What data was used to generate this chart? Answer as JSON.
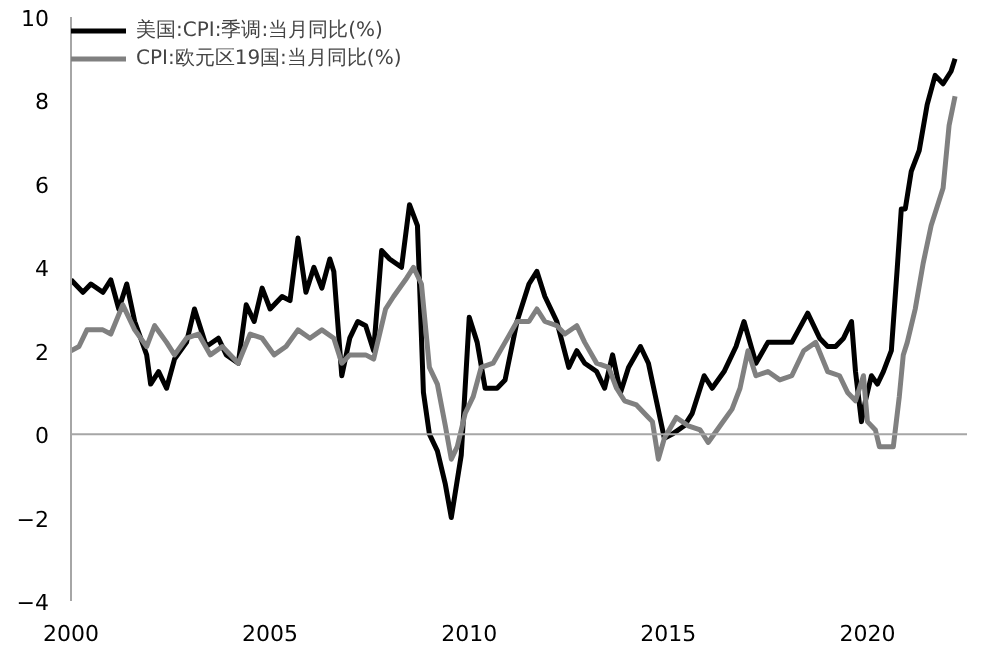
{
  "chart_data": {
    "type": "line",
    "xlim": [
      2000,
      2022.5
    ],
    "ylim": [
      -4,
      10
    ],
    "xticks": [
      2000,
      2005,
      2010,
      2015,
      2020
    ],
    "yticks": [
      -4,
      -2,
      0,
      2,
      4,
      6,
      8,
      10
    ],
    "grid": false,
    "legend": "top left",
    "line_style": "solid",
    "ref_lines": [
      {
        "axis": "y",
        "value": 0,
        "color": "#a6a6a6"
      }
    ],
    "series": [
      {
        "name": "美国:CPI:季调:当月同比(%)",
        "color": "#000000",
        "x": [
          2000.0,
          2000.3,
          2000.5,
          2000.8,
          2001.0,
          2001.2,
          2001.4,
          2001.6,
          2001.9,
          2002.0,
          2002.2,
          2002.4,
          2002.6,
          2002.9,
          2003.1,
          2003.4,
          2003.7,
          2003.9,
          2004.2,
          2004.4,
          2004.6,
          2004.8,
          2005.0,
          2005.3,
          2005.5,
          2005.7,
          2005.9,
          2006.1,
          2006.3,
          2006.5,
          2006.6,
          2006.8,
          2007.0,
          2007.2,
          2007.4,
          2007.6,
          2007.8,
          2008.0,
          2008.3,
          2008.5,
          2008.7,
          2008.85,
          2009.0,
          2009.2,
          2009.4,
          2009.55,
          2009.8,
          2010.0,
          2010.2,
          2010.4,
          2010.7,
          2010.9,
          2011.2,
          2011.5,
          2011.7,
          2011.9,
          2012.2,
          2012.5,
          2012.7,
          2012.9,
          2013.2,
          2013.4,
          2013.6,
          2013.8,
          2014.0,
          2014.3,
          2014.5,
          2014.7,
          2014.9,
          2015.1,
          2015.4,
          2015.6,
          2015.9,
          2016.1,
          2016.4,
          2016.7,
          2016.9,
          2017.2,
          2017.5,
          2017.8,
          2018.1,
          2018.5,
          2018.8,
          2019.0,
          2019.2,
          2019.4,
          2019.6,
          2019.7,
          2019.85,
          2019.95,
          2020.1,
          2020.25,
          2020.4,
          2020.6,
          2020.75,
          2020.85,
          2020.95,
          2021.1,
          2021.3,
          2021.5,
          2021.7,
          2021.9,
          2022.1,
          2022.2
        ],
        "values": [
          3.7,
          3.4,
          3.6,
          3.4,
          3.7,
          3.0,
          3.6,
          2.7,
          1.9,
          1.2,
          1.5,
          1.1,
          1.8,
          2.2,
          3.0,
          2.1,
          2.3,
          1.9,
          1.7,
          3.1,
          2.7,
          3.5,
          3.0,
          3.3,
          3.2,
          4.7,
          3.4,
          4.0,
          3.5,
          4.2,
          3.9,
          1.4,
          2.3,
          2.7,
          2.6,
          2.0,
          4.4,
          4.2,
          4.0,
          5.5,
          5.0,
          1.0,
          0.0,
          -0.4,
          -1.2,
          -2.0,
          -0.5,
          2.8,
          2.2,
          1.1,
          1.1,
          1.3,
          2.7,
          3.6,
          3.9,
          3.3,
          2.7,
          1.6,
          2.0,
          1.7,
          1.5,
          1.1,
          1.9,
          1.0,
          1.6,
          2.1,
          1.7,
          0.8,
          -0.1,
          0.0,
          0.2,
          0.5,
          1.4,
          1.1,
          1.5,
          2.1,
          2.7,
          1.7,
          2.2,
          2.2,
          2.2,
          2.9,
          2.3,
          2.1,
          2.1,
          2.3,
          2.7,
          1.5,
          0.3,
          0.8,
          1.4,
          1.2,
          1.5,
          2.0,
          4.0,
          5.4,
          5.4,
          6.3,
          6.8,
          7.9,
          8.6,
          8.4,
          8.7,
          9.0
        ]
      },
      {
        "name": "CPI:欧元区19国:当月同比(%)",
        "color": "#808080",
        "x": [
          2000.0,
          2000.2,
          2000.4,
          2000.8,
          2001.0,
          2001.3,
          2001.6,
          2001.9,
          2002.1,
          2002.4,
          2002.6,
          2002.9,
          2003.2,
          2003.5,
          2003.8,
          2004.2,
          2004.5,
          2004.8,
          2005.1,
          2005.4,
          2005.7,
          2006.0,
          2006.3,
          2006.6,
          2006.8,
          2007.0,
          2007.4,
          2007.6,
          2007.9,
          2008.1,
          2008.4,
          2008.6,
          2008.8,
          2009.0,
          2009.2,
          2009.4,
          2009.55,
          2009.7,
          2009.9,
          2010.1,
          2010.3,
          2010.6,
          2010.9,
          2011.2,
          2011.5,
          2011.7,
          2011.9,
          2012.2,
          2012.4,
          2012.7,
          2012.9,
          2013.2,
          2013.5,
          2013.7,
          2013.9,
          2014.2,
          2014.5,
          2014.6,
          2014.75,
          2014.9,
          2015.2,
          2015.5,
          2015.8,
          2016.0,
          2016.3,
          2016.6,
          2016.8,
          2017.0,
          2017.2,
          2017.5,
          2017.8,
          2018.1,
          2018.4,
          2018.7,
          2019.0,
          2019.3,
          2019.5,
          2019.7,
          2019.9,
          2020.0,
          2020.2,
          2020.3,
          2020.5,
          2020.65,
          2020.8,
          2020.9,
          2021.0,
          2021.2,
          2021.4,
          2021.6,
          2021.9,
          2022.05,
          2022.2
        ],
        "values": [
          2.0,
          2.1,
          2.5,
          2.5,
          2.4,
          3.1,
          2.5,
          2.1,
          2.6,
          2.2,
          1.9,
          2.3,
          2.4,
          1.9,
          2.1,
          1.7,
          2.4,
          2.3,
          1.9,
          2.1,
          2.5,
          2.3,
          2.5,
          2.3,
          1.7,
          1.9,
          1.9,
          1.8,
          3.0,
          3.3,
          3.7,
          4.0,
          3.6,
          1.6,
          1.2,
          0.2,
          -0.6,
          -0.3,
          0.5,
          0.9,
          1.6,
          1.7,
          2.2,
          2.7,
          2.7,
          3.0,
          2.7,
          2.6,
          2.4,
          2.6,
          2.2,
          1.7,
          1.6,
          1.1,
          0.8,
          0.7,
          0.4,
          0.3,
          -0.6,
          -0.1,
          0.4,
          0.2,
          0.1,
          -0.2,
          0.2,
          0.6,
          1.1,
          2.0,
          1.4,
          1.5,
          1.3,
          1.4,
          2.0,
          2.2,
          1.5,
          1.4,
          1.0,
          0.8,
          1.4,
          0.3,
          0.1,
          -0.3,
          -0.3,
          -0.3,
          0.9,
          1.9,
          2.2,
          3.0,
          4.1,
          5.0,
          5.9,
          7.4,
          8.1
        ]
      }
    ]
  }
}
